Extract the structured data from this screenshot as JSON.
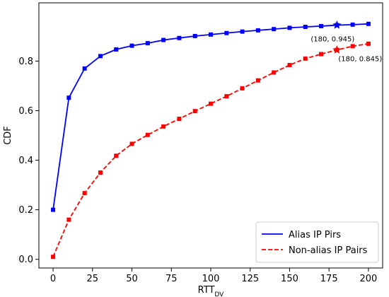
{
  "chart_data": {
    "type": "line",
    "title": "",
    "xlabel": "RTT",
    "xlabel_sub": "DV",
    "ylabel": "CDF",
    "xlim": [
      -9,
      209
    ],
    "ylim": [
      -0.035,
      1.035
    ],
    "xticks": [
      0,
      25,
      50,
      75,
      100,
      125,
      150,
      175,
      200
    ],
    "yticks": [
      0.0,
      0.2,
      0.4,
      0.6,
      0.8
    ],
    "grid": false,
    "legend_position": "lower-right",
    "x": [
      0,
      10,
      20,
      30,
      40,
      50,
      60,
      70,
      80,
      90,
      100,
      110,
      120,
      130,
      140,
      150,
      160,
      170,
      180,
      190,
      200
    ],
    "series": [
      {
        "name": "Alias IP Pirs",
        "color": "#0000ff",
        "line_style": "solid",
        "marker": "square",
        "values": [
          0.2,
          0.652,
          0.77,
          0.82,
          0.847,
          0.862,
          0.872,
          0.885,
          0.893,
          0.901,
          0.907,
          0.913,
          0.919,
          0.924,
          0.929,
          0.934,
          0.938,
          0.941,
          0.945,
          0.947,
          0.95
        ]
      },
      {
        "name": "Non-alias IP Pairs",
        "color": "#ff0000",
        "line_style": "dashed",
        "marker": "square",
        "values": [
          0.01,
          0.16,
          0.267,
          0.35,
          0.418,
          0.466,
          0.502,
          0.536,
          0.567,
          0.598,
          0.628,
          0.658,
          0.69,
          0.722,
          0.754,
          0.784,
          0.81,
          0.828,
          0.845,
          0.86,
          0.87
        ]
      }
    ],
    "annotations": [
      {
        "series": 0,
        "x": 180,
        "y": 0.945,
        "marker": "star",
        "text": "(180, 0.945)",
        "placement": "below-left"
      },
      {
        "series": 1,
        "x": 180,
        "y": 0.845,
        "marker": "star",
        "text": "(180, 0.845)",
        "placement": "below-right"
      }
    ]
  }
}
